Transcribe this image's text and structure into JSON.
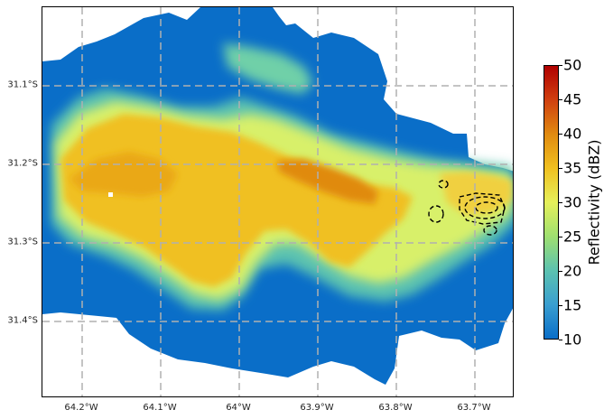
{
  "map": {
    "lon_labels": [
      "64.2°W",
      "64.1°W",
      "64°W",
      "63.9°W",
      "63.8°W",
      "63.7°W"
    ],
    "lat_labels": [
      "31.1°S",
      "31.2°S",
      "31.3°S",
      "31.4°S"
    ],
    "lon_range": [
      -64.25,
      -63.65
    ],
    "lat_range": [
      -31.5,
      -31.0
    ],
    "gridlines": true,
    "gridline_style": "dashed",
    "gridline_color": "#b0b0b0"
  },
  "colorbar": {
    "label": "Reflectivity (dBZ)",
    "ticks": [
      "10",
      "15",
      "20",
      "25",
      "30",
      "35",
      "40",
      "45",
      "50"
    ],
    "range": [
      10,
      50
    ],
    "colors": [
      "#0a6ec8",
      "#3a9fd0",
      "#5cc2b0",
      "#9fe070",
      "#e6f05a",
      "#f0c020",
      "#e08a10",
      "#d04010",
      "#b00000"
    ]
  },
  "chart_data": {
    "type": "heatmap",
    "title": "",
    "xlabel": "",
    "ylabel": "",
    "variable": "Reflectivity",
    "units": "dBZ",
    "value_range": [
      10,
      50
    ],
    "features": {
      "background_echo_dBZ": 10,
      "main_band_dBZ": [
        25,
        33
      ],
      "core_max_dBZ": 36,
      "core_location": [
        "63.9°W",
        "31.23°S"
      ],
      "contours": "black dashed outlines near 63.7°W, 31.25°S"
    }
  }
}
